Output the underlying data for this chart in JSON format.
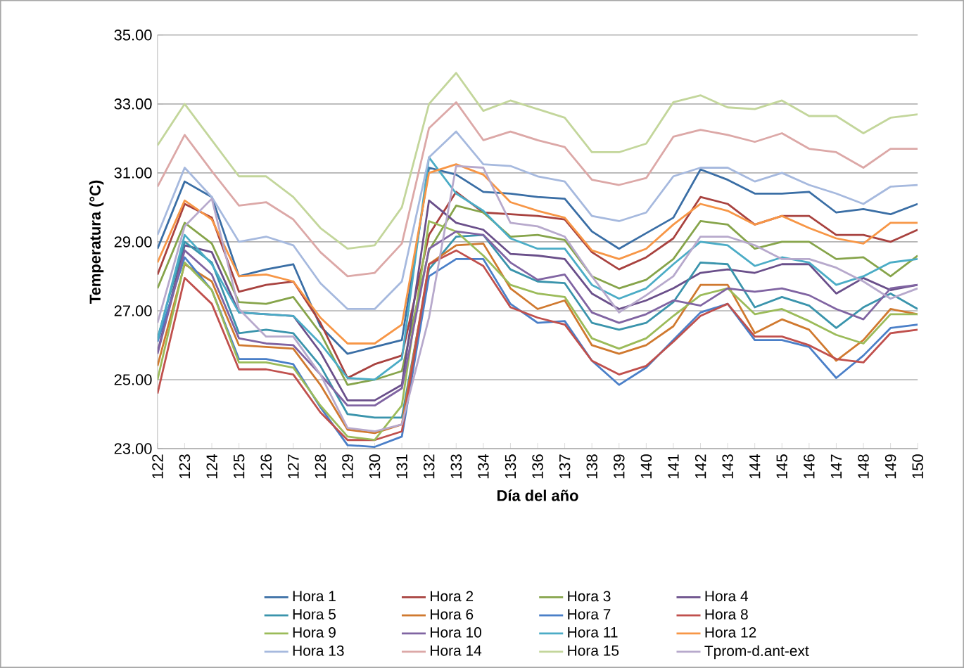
{
  "chart_data": {
    "type": "line",
    "xlabel": "Día del año",
    "ylabel": "Temperatura (°C)",
    "categories": [
      "122",
      "123",
      "124",
      "125",
      "126",
      "127",
      "128",
      "129",
      "130",
      "131",
      "132",
      "133",
      "134",
      "135",
      "136",
      "137",
      "138",
      "139",
      "140",
      "141",
      "142",
      "143",
      "144",
      "145",
      "146",
      "147",
      "148",
      "149",
      "150"
    ],
    "ylim": [
      23,
      35
    ],
    "yticks": [
      {
        "value": 23,
        "label": "23.00"
      },
      {
        "value": 25,
        "label": "25.00"
      },
      {
        "value": 27,
        "label": "27.00"
      },
      {
        "value": 29,
        "label": "29.00"
      },
      {
        "value": 31,
        "label": "31.00"
      },
      {
        "value": 33,
        "label": "33.00"
      },
      {
        "value": 35,
        "label": "35.00"
      }
    ],
    "grid": "y",
    "legend": "bottom",
    "marker": "none",
    "line_style": "solid",
    "series": [
      {
        "name": "Hora 1",
        "color": "#3a6ea5",
        "values": [
          28.8,
          30.75,
          30.3,
          28.0,
          28.2,
          28.35,
          26.55,
          25.75,
          25.95,
          26.15,
          31.15,
          30.95,
          30.45,
          30.4,
          30.3,
          30.25,
          29.3,
          28.8,
          29.25,
          29.7,
          31.1,
          30.8,
          30.4,
          30.4,
          30.45,
          29.85,
          29.95,
          29.8,
          30.1
        ]
      },
      {
        "name": "Hora 2",
        "color": "#a8423f",
        "values": [
          28.05,
          30.1,
          29.7,
          27.55,
          27.75,
          27.85,
          26.65,
          25.05,
          25.45,
          25.7,
          29.2,
          30.45,
          29.85,
          29.8,
          29.75,
          29.65,
          28.7,
          28.2,
          28.55,
          29.1,
          30.3,
          30.1,
          29.5,
          29.75,
          29.75,
          29.2,
          29.2,
          29.0,
          29.35
        ]
      },
      {
        "name": "Hora 3",
        "color": "#86a44a",
        "values": [
          27.65,
          29.55,
          28.95,
          27.25,
          27.2,
          27.4,
          26.35,
          24.85,
          25.0,
          25.25,
          28.75,
          30.05,
          29.85,
          29.15,
          29.2,
          29.05,
          28.0,
          27.65,
          27.9,
          28.5,
          29.6,
          29.5,
          28.8,
          29.0,
          29.0,
          28.5,
          28.55,
          28.0,
          28.6
        ]
      },
      {
        "name": "Hora 4",
        "color": "#6a4f8a",
        "values": [
          25.8,
          28.9,
          28.7,
          26.95,
          26.9,
          26.85,
          25.8,
          24.4,
          24.4,
          24.85,
          30.2,
          29.55,
          29.35,
          28.65,
          28.6,
          28.5,
          27.5,
          27.05,
          27.3,
          27.65,
          28.1,
          28.2,
          28.1,
          28.35,
          28.35,
          27.5,
          27.95,
          27.6,
          27.75
        ]
      },
      {
        "name": "Hora 5",
        "color": "#3a94ac",
        "values": [
          26.2,
          29.0,
          28.4,
          26.35,
          26.45,
          26.35,
          25.4,
          24.0,
          23.9,
          23.9,
          28.2,
          29.15,
          29.2,
          28.2,
          27.85,
          27.8,
          26.65,
          26.45,
          26.65,
          27.25,
          28.4,
          28.35,
          27.1,
          27.4,
          27.15,
          26.5,
          27.1,
          27.5,
          27.05
        ]
      },
      {
        "name": "Hora 6",
        "color": "#d0792f",
        "values": [
          25.4,
          28.35,
          27.85,
          26.0,
          25.95,
          25.9,
          24.85,
          23.55,
          23.45,
          23.7,
          28.35,
          28.9,
          28.95,
          27.65,
          27.05,
          27.3,
          26.0,
          25.75,
          26.0,
          26.55,
          27.75,
          27.75,
          26.35,
          26.75,
          26.45,
          25.55,
          26.15,
          27.05,
          26.9
        ]
      },
      {
        "name": "Hora 7",
        "color": "#4a7fc8",
        "values": [
          26.1,
          28.55,
          27.6,
          25.6,
          25.6,
          25.45,
          24.2,
          23.1,
          23.05,
          23.35,
          28.0,
          28.5,
          28.5,
          27.2,
          26.65,
          26.7,
          25.55,
          24.85,
          25.35,
          26.15,
          26.95,
          27.2,
          26.15,
          26.15,
          25.95,
          25.05,
          25.7,
          26.5,
          26.6
        ]
      },
      {
        "name": "Hora 8",
        "color": "#c0504d",
        "values": [
          24.6,
          27.95,
          27.2,
          25.3,
          25.3,
          25.15,
          24.05,
          23.25,
          23.25,
          23.5,
          28.35,
          28.75,
          28.3,
          27.1,
          26.8,
          26.6,
          25.55,
          25.15,
          25.4,
          26.1,
          26.85,
          27.2,
          26.25,
          26.25,
          26.0,
          25.6,
          25.5,
          26.35,
          26.45
        ]
      },
      {
        "name": "Hora 9",
        "color": "#9bbb59",
        "values": [
          25.0,
          28.4,
          27.6,
          25.5,
          25.5,
          25.35,
          24.25,
          23.35,
          23.25,
          24.25,
          29.6,
          29.3,
          28.6,
          27.75,
          27.5,
          27.4,
          26.2,
          25.9,
          26.2,
          26.85,
          27.45,
          27.65,
          26.9,
          27.05,
          26.7,
          26.3,
          26.05,
          26.9,
          26.9
        ]
      },
      {
        "name": "Hora 10",
        "color": "#8064a2",
        "values": [
          25.75,
          28.75,
          28.05,
          26.2,
          26.05,
          26.0,
          25.15,
          24.25,
          24.25,
          24.75,
          28.8,
          29.3,
          29.2,
          28.4,
          27.9,
          28.05,
          26.95,
          26.65,
          26.9,
          27.3,
          27.15,
          27.65,
          27.55,
          27.65,
          27.45,
          27.05,
          26.75,
          27.65,
          27.75
        ]
      },
      {
        "name": "Hora 11",
        "color": "#4bacc6",
        "values": [
          26.15,
          29.2,
          28.35,
          26.95,
          26.9,
          26.85,
          26.05,
          25.05,
          25.0,
          25.6,
          31.45,
          30.4,
          29.9,
          29.1,
          28.8,
          28.8,
          27.75,
          27.35,
          27.65,
          28.35,
          29.0,
          28.9,
          28.3,
          28.55,
          28.4,
          27.75,
          28.0,
          28.4,
          28.5
        ]
      },
      {
        "name": "Hora 12",
        "color": "#f79646",
        "values": [
          28.4,
          30.2,
          29.65,
          28.0,
          28.05,
          27.85,
          26.8,
          26.05,
          26.05,
          26.6,
          31.0,
          31.25,
          30.95,
          30.15,
          29.9,
          29.7,
          28.75,
          28.5,
          28.8,
          29.5,
          30.1,
          29.9,
          29.5,
          29.75,
          29.4,
          29.1,
          28.95,
          29.55,
          29.55
        ]
      },
      {
        "name": "Hora 13",
        "color": "#a6b9de",
        "values": [
          29.2,
          31.15,
          30.3,
          29.0,
          29.15,
          28.9,
          27.8,
          27.05,
          27.05,
          27.85,
          31.45,
          32.2,
          31.25,
          31.2,
          30.9,
          30.75,
          29.75,
          29.6,
          29.85,
          30.9,
          31.15,
          31.15,
          30.75,
          31.0,
          30.65,
          30.4,
          30.1,
          30.6,
          30.65
        ]
      },
      {
        "name": "Hora 14",
        "color": "#dca8a7",
        "values": [
          30.6,
          32.1,
          31.05,
          30.05,
          30.15,
          29.65,
          28.7,
          28.0,
          28.1,
          28.95,
          32.3,
          33.05,
          31.95,
          32.2,
          31.95,
          31.75,
          30.8,
          30.65,
          30.85,
          32.05,
          32.25,
          32.1,
          31.9,
          32.15,
          31.7,
          31.6,
          31.15,
          31.7,
          31.7
        ]
      },
      {
        "name": "Hora 15",
        "color": "#c3d69b",
        "values": [
          31.8,
          33.0,
          31.95,
          30.9,
          30.9,
          30.3,
          29.4,
          28.8,
          28.9,
          30.0,
          33.0,
          33.9,
          32.8,
          33.1,
          32.85,
          32.6,
          31.6,
          31.6,
          31.85,
          33.05,
          33.25,
          32.9,
          32.85,
          33.1,
          32.65,
          32.65,
          32.15,
          32.6,
          32.7
        ]
      },
      {
        "name": "Tprom-d.ant-ext",
        "color": "#b7a9cc",
        "values": [
          26.65,
          29.45,
          30.25,
          27.05,
          26.25,
          26.25,
          25.15,
          23.6,
          23.5,
          23.7,
          26.8,
          31.2,
          31.15,
          29.55,
          29.45,
          29.15,
          28.0,
          26.95,
          27.45,
          28.0,
          29.15,
          29.15,
          28.9,
          28.5,
          28.5,
          28.25,
          27.85,
          27.35,
          27.65
        ]
      }
    ]
  }
}
